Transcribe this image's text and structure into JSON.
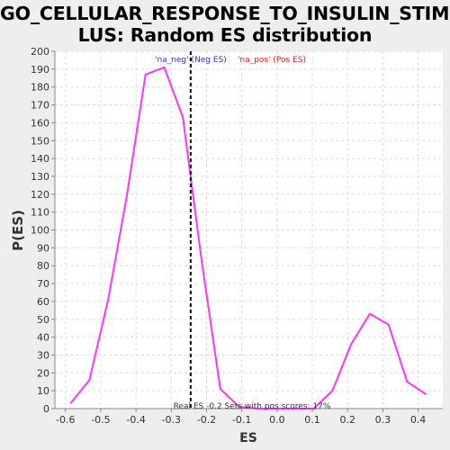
{
  "chart_data": {
    "type": "line",
    "title_lines": [
      "GO_CELLULAR_RESPONSE_TO_INSULIN_STIMU",
      "LUS: Random ES distribution"
    ],
    "xlabel": "ES",
    "ylabel": "P(ES)",
    "xlim": [
      -0.63,
      0.47
    ],
    "ylim": [
      0,
      200
    ],
    "x_ticks": [
      -0.6,
      -0.5,
      -0.4,
      -0.3,
      -0.2,
      -0.1,
      0.0,
      0.1,
      0.2,
      0.3,
      0.4
    ],
    "x_tick_labels": [
      "-0.6",
      "-0.5",
      "-0.4",
      "-0.3",
      "-0.2",
      "-0.1",
      "0.0",
      "0.1",
      "0.2",
      "0.3",
      "0.4"
    ],
    "y_ticks": [
      0,
      10,
      20,
      30,
      40,
      50,
      60,
      70,
      80,
      90,
      100,
      110,
      120,
      130,
      140,
      150,
      160,
      170,
      180,
      190,
      200
    ],
    "y_tick_labels": [
      "0",
      "10",
      "20",
      "30",
      "40",
      "50",
      "60",
      "70",
      "80",
      "90",
      "100",
      "110",
      "120",
      "130",
      "140",
      "150",
      "160",
      "170",
      "180",
      "190",
      "200"
    ],
    "grid": true,
    "series": [
      {
        "color": "#ff33ff",
        "x": [
          -0.585,
          -0.532,
          -0.479,
          -0.426,
          -0.373,
          -0.32,
          -0.267,
          -0.214,
          -0.161,
          -0.108,
          -0.055,
          -0.002,
          0.051,
          0.104,
          0.157,
          0.21,
          0.263,
          0.316,
          0.369,
          0.422
        ],
        "y": [
          3,
          16,
          61,
          119,
          187,
          191,
          163,
          83,
          11,
          1,
          0,
          0,
          0,
          0,
          10,
          36,
          53,
          47,
          15,
          8
        ]
      }
    ],
    "reference_line": {
      "x": -0.245,
      "color": "#000000",
      "style": "dashed"
    },
    "annotations": [
      {
        "text": "'na_neg' (Neg ES)",
        "color": "#3333cc",
        "x": -0.245,
        "y": 196
      },
      {
        "text": "'na_pos' (Pos ES)",
        "color": "#dd2222",
        "x": -0.015,
        "y": 196
      }
    ],
    "bottom_note": "Real ES -0.2 Sets with pos scores: 17%",
    "colors": {
      "background": "#eeeeee",
      "plot_background": "#ffffff",
      "grid": "#dddddd",
      "axis": "#888888"
    }
  }
}
